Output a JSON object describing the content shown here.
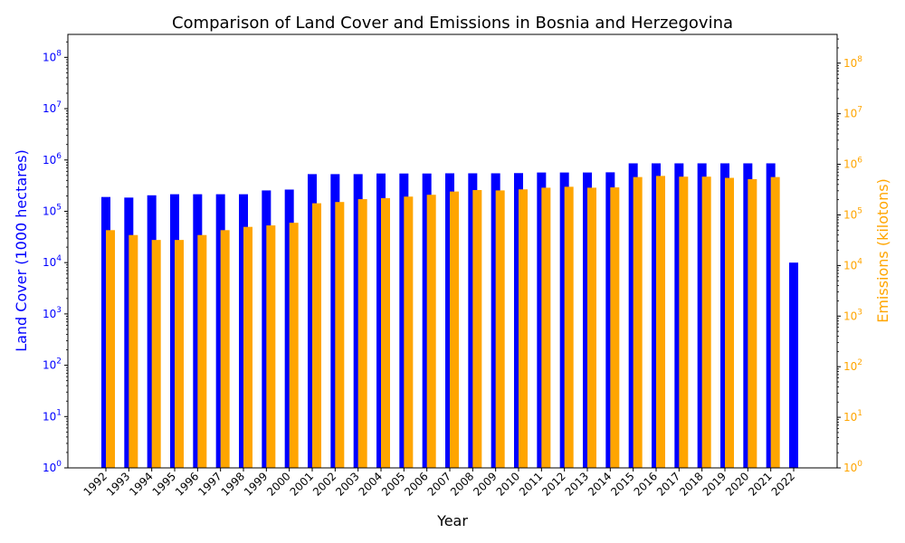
{
  "chart_data": {
    "type": "bar",
    "title": "Comparison of Land Cover and Emissions in Bosnia and Herzegovina",
    "xlabel": "Year",
    "ylabel_left": "Land Cover (1000 hectares)",
    "ylabel_right": "Emissions (kilotons)",
    "y_scale": "log",
    "ylim_left": [
      1,
      280000000
    ],
    "ylim_right": [
      1,
      370000000
    ],
    "ytick_labels": [
      "10^0",
      "10^1",
      "10^2",
      "10^3",
      "10^4",
      "10^5",
      "10^6",
      "10^7",
      "10^8"
    ],
    "categories": [
      "1992",
      "1993",
      "1994",
      "1995",
      "1996",
      "1997",
      "1998",
      "1999",
      "2000",
      "2001",
      "2002",
      "2003",
      "2004",
      "2005",
      "2006",
      "2007",
      "2008",
      "2009",
      "2010",
      "2011",
      "2012",
      "2013",
      "2014",
      "2015",
      "2016",
      "2017",
      "2018",
      "2019",
      "2020",
      "2021",
      "2022"
    ],
    "series": [
      {
        "name": "",
        "axis": "left",
        "color": "#0000ff",
        "values": [
          190000,
          185000,
          205000,
          215000,
          215000,
          215000,
          215000,
          255000,
          265000,
          530000,
          530000,
          530000,
          545000,
          545000,
          545000,
          550000,
          550000,
          550000,
          555000,
          570000,
          570000,
          570000,
          575000,
          860000,
          860000,
          860000,
          860000,
          860000,
          860000,
          860000,
          10000
        ]
      },
      {
        "name": "",
        "axis": "right",
        "color": "#ffa500",
        "values": [
          50000,
          40000,
          32000,
          32000,
          40000,
          50000,
          58000,
          62000,
          70000,
          170000,
          180000,
          205000,
          215000,
          230000,
          250000,
          290000,
          310000,
          305000,
          320000,
          345000,
          360000,
          345000,
          350000,
          560000,
          590000,
          570000,
          570000,
          540000,
          510000,
          560000,
          null
        ]
      }
    ],
    "colors": {
      "left_axis": "#0000ff",
      "right_axis": "#ffa500",
      "text": "#000000"
    },
    "grid": false,
    "legend": "none"
  }
}
